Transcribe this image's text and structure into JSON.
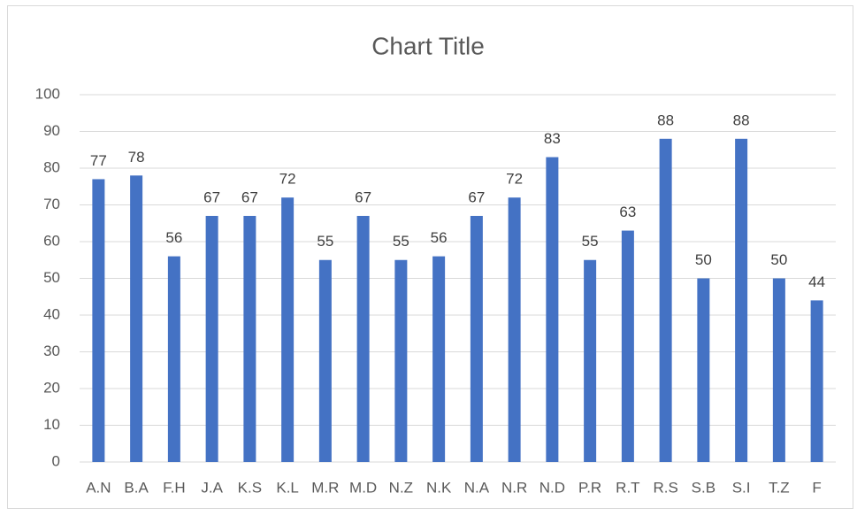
{
  "chart_data": {
    "type": "bar",
    "title": "Chart Title",
    "categories": [
      "A.N",
      "B.A",
      "F.H",
      "J.A",
      "K.S",
      "K.L",
      "M.R",
      "M.D",
      "N.Z",
      "N.K",
      "N.A",
      "N.R",
      "N.D",
      "P.R",
      "R.T",
      "R.S",
      "S.B",
      "S.I",
      "T.Z",
      "F"
    ],
    "values": [
      77,
      78,
      56,
      67,
      67,
      72,
      55,
      67,
      55,
      56,
      67,
      72,
      83,
      55,
      63,
      88,
      50,
      88,
      50,
      44
    ],
    "color": "#4472c4",
    "ylim": [
      0,
      100
    ],
    "yticks": [
      0,
      10,
      20,
      30,
      40,
      50,
      60,
      70,
      80,
      90,
      100
    ],
    "grid": true
  }
}
